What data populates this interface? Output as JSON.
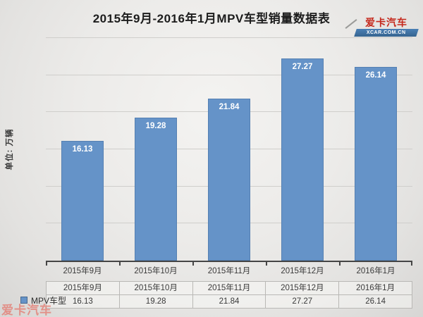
{
  "header": {
    "title": "2015年9月-2016年1月MPV车型销量数据表"
  },
  "logo": {
    "brand": "爱卡汽车",
    "domain": "XCAR.COM.CN",
    "brand_color": "#c5281c",
    "band_color": "#3f74ab"
  },
  "watermark": {
    "text": "爱卡汽车"
  },
  "chart_data": {
    "type": "bar",
    "title": "2015年9月-2016年1月MPV车型销量数据表",
    "unit_label": "单位: 万辆",
    "categories": [
      "2015年9月",
      "2015年10月",
      "2015年11月",
      "2015年12月",
      "2016年1月"
    ],
    "series": [
      {
        "name": "MPV车型",
        "values": [
          16.13,
          19.28,
          21.84,
          27.27,
          26.14
        ]
      }
    ],
    "ylim": [
      0,
      30
    ],
    "grid_step": 5,
    "grid": "on",
    "y_tick_labels_visible": false,
    "bar_color": "#6593c8",
    "bar_label_color": "#ffffff",
    "legend_position": "bottom-left",
    "data_table_visible": true
  }
}
